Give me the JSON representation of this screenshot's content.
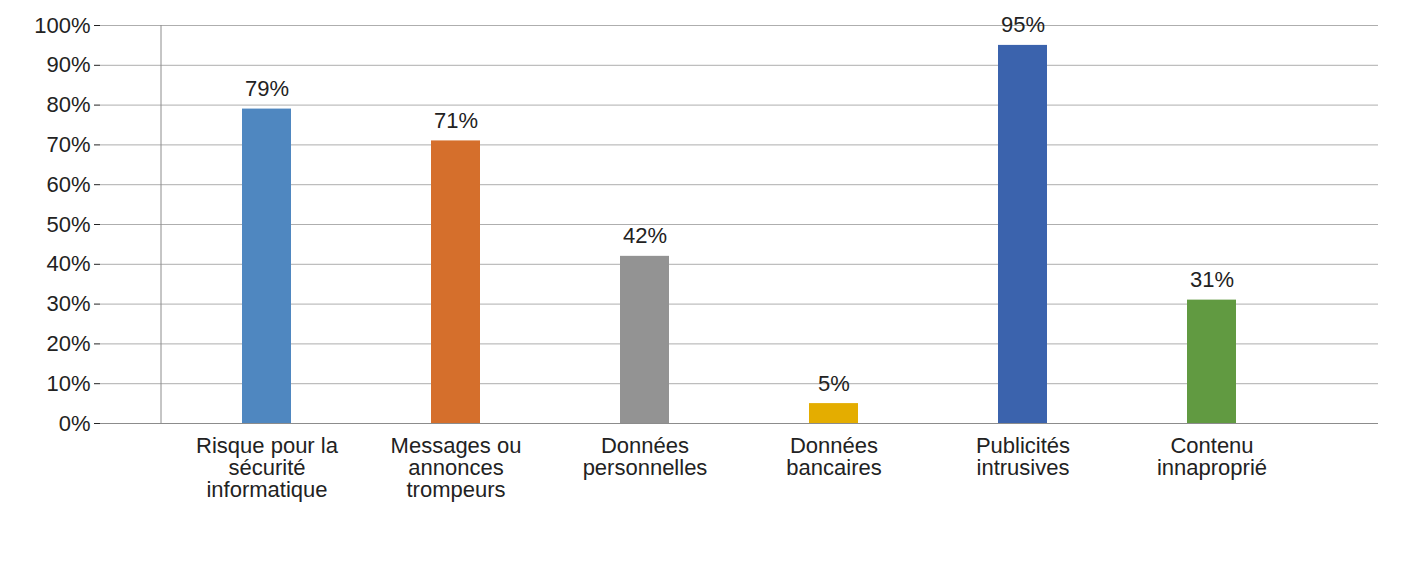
{
  "chart_data": {
    "type": "bar",
    "categories": [
      "Risque pour la sécurité informatique",
      "Messages ou annonces trompeurs",
      "Données personnelles",
      "Données bancaires",
      "Publicités intrusives",
      "Contenu innaproprié"
    ],
    "values": [
      79,
      71,
      42,
      5,
      95,
      31
    ],
    "value_labels": [
      "79%",
      "71%",
      "42%",
      "5%",
      "95%",
      "31%"
    ],
    "colors": [
      "#4f87c0",
      "#d56f2c",
      "#939393",
      "#e4ad00",
      "#3b63ad",
      "#619a41"
    ],
    "ylim": [
      0,
      100
    ],
    "yticks": [
      {
        "value": 0,
        "label": "0%"
      },
      {
        "value": 10,
        "label": "10%"
      },
      {
        "value": 20,
        "label": "20%"
      },
      {
        "value": 30,
        "label": "30%"
      },
      {
        "value": 40,
        "label": "40%"
      },
      {
        "value": 50,
        "label": "50%"
      },
      {
        "value": 60,
        "label": "60%"
      },
      {
        "value": 70,
        "label": "70%"
      },
      {
        "value": 80,
        "label": "80%"
      },
      {
        "value": 90,
        "label": "90%"
      },
      {
        "value": 100,
        "label": "100%"
      }
    ],
    "grid": true,
    "data_labels": true
  }
}
